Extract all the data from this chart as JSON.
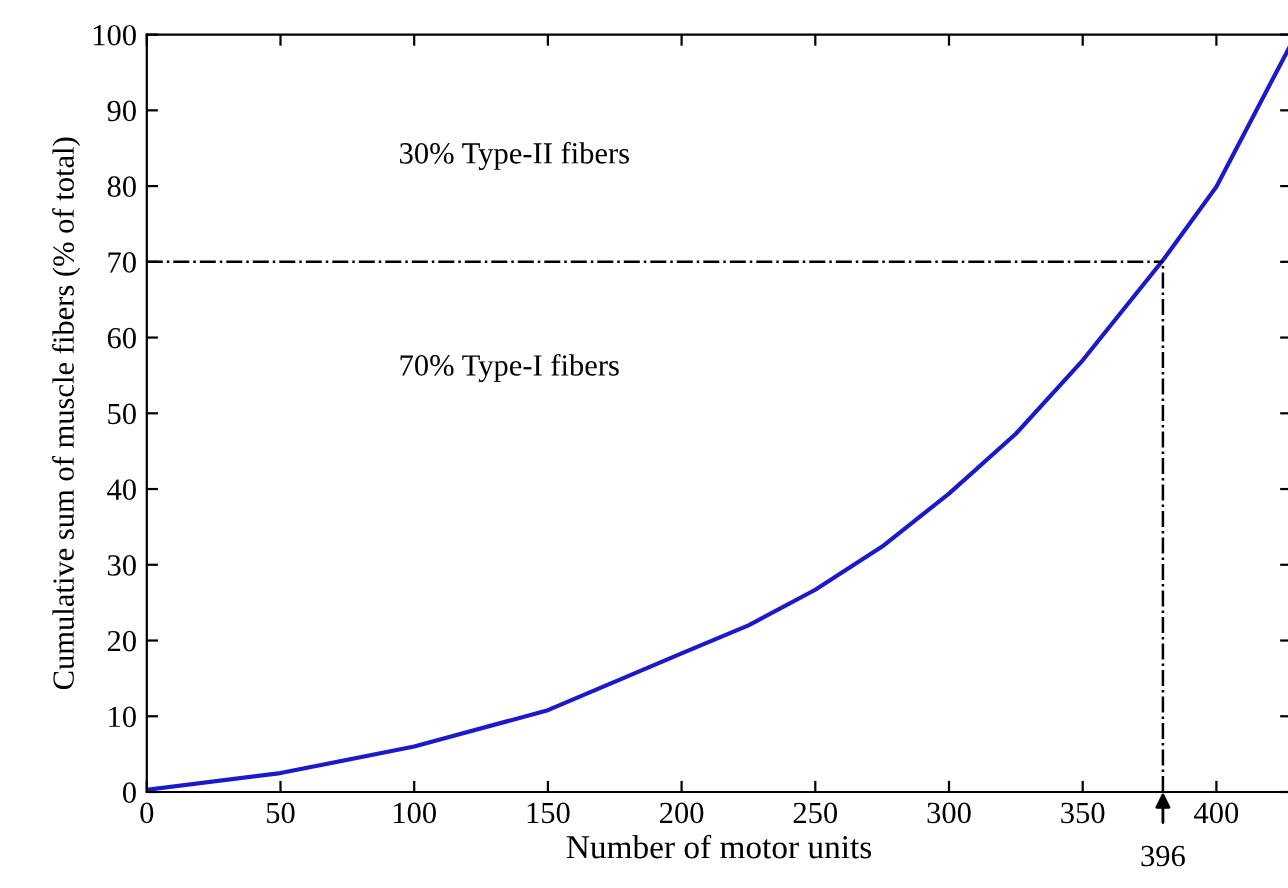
{
  "chart_data": {
    "type": "line",
    "xlabel": "Number of motor units",
    "ylabel": "Cumulative sum of muscle fibers (% of total)",
    "x": [
      0,
      50,
      100,
      150,
      200,
      225,
      250,
      275,
      300,
      325,
      350,
      380,
      400,
      428
    ],
    "series": [
      {
        "color": "#1a1acc",
        "values": [
          0.3,
          2.5,
          6.0,
          10.8,
          18.3,
          22,
          26.7,
          32.4,
          39.4,
          47.3,
          57,
          70.2,
          79.9,
          98.8
        ]
      }
    ],
    "xlim": [
      0,
      428
    ],
    "ylim": [
      0,
      100
    ],
    "xticks": [
      0,
      50,
      100,
      150,
      200,
      250,
      300,
      350,
      400
    ],
    "yticks": [
      0,
      10,
      20,
      30,
      40,
      50,
      60,
      70,
      80,
      90,
      100
    ],
    "ref_lines": [
      {
        "axis": "y",
        "value": 70,
        "line_style": "dashdot",
        "color": "#000000"
      },
      {
        "axis": "x",
        "value": 380,
        "line_style": "dashdot",
        "color": "#000000"
      }
    ],
    "annotations": [
      "30% Type-II fibers",
      "70% Type-I fibers",
      "396"
    ],
    "line_style": "solid",
    "marker": "none",
    "grid": false,
    "legend": false
  }
}
